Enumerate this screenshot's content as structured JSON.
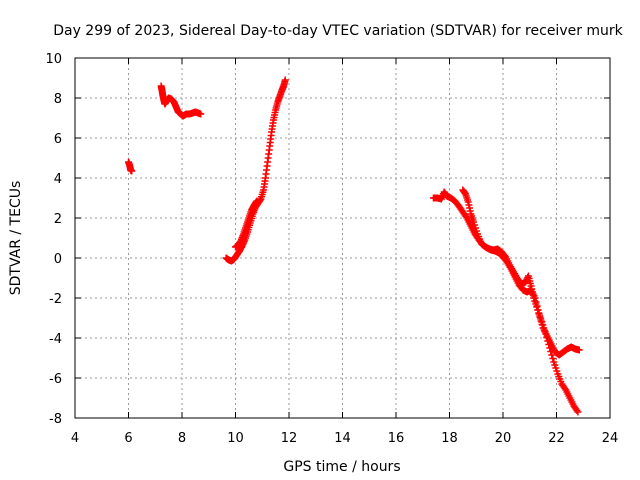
{
  "chart_data": {
    "type": "scatter",
    "title": "Day 299 of 2023, Sidereal Day-to-day VTEC variation (SDTVAR) for receiver murk",
    "xlabel": "GPS time / hours",
    "ylabel": "SDTVAR / TECUs",
    "xlim": [
      4,
      24
    ],
    "ylim": [
      -8,
      10
    ],
    "xticks": [
      4,
      6,
      8,
      10,
      12,
      14,
      16,
      18,
      20,
      22,
      24
    ],
    "yticks": [
      -8,
      -6,
      -4,
      -2,
      0,
      2,
      4,
      6,
      8,
      10
    ],
    "grid": true,
    "marker": "+",
    "color": "#ff0000",
    "series": [
      {
        "name": "SDTVAR",
        "segments": [
          [
            [
              6.0,
              4.8
            ],
            [
              6.05,
              4.6
            ],
            [
              6.08,
              4.4
            ],
            [
              6.12,
              4.35
            ]
          ],
          [
            [
              7.22,
              8.6
            ],
            [
              7.25,
              8.4
            ],
            [
              7.28,
              8.15
            ],
            [
              7.32,
              7.9
            ],
            [
              7.36,
              7.7
            ],
            [
              7.42,
              7.85
            ],
            [
              7.5,
              8.0
            ],
            [
              7.6,
              7.95
            ],
            [
              7.7,
              7.8
            ],
            [
              7.78,
              7.55
            ],
            [
              7.86,
              7.3
            ],
            [
              7.95,
              7.2
            ],
            [
              8.05,
              7.1
            ],
            [
              8.15,
              7.2
            ],
            [
              8.28,
              7.2
            ],
            [
              8.4,
              7.25
            ],
            [
              8.5,
              7.3
            ],
            [
              8.6,
              7.25
            ],
            [
              8.7,
              7.2
            ]
          ],
          [
            [
              9.65,
              0.0
            ],
            [
              9.75,
              -0.1
            ],
            [
              9.85,
              -0.15
            ],
            [
              9.95,
              -0.05
            ],
            [
              10.05,
              0.15
            ],
            [
              10.15,
              0.35
            ],
            [
              10.25,
              0.6
            ],
            [
              10.35,
              0.9
            ],
            [
              10.45,
              1.3
            ],
            [
              10.55,
              1.75
            ],
            [
              10.65,
              2.2
            ],
            [
              10.75,
              2.55
            ],
            [
              10.85,
              2.75
            ],
            [
              10.95,
              2.95
            ],
            [
              11.05,
              3.4
            ],
            [
              11.12,
              4.0
            ],
            [
              11.2,
              4.8
            ],
            [
              11.28,
              5.6
            ],
            [
              11.35,
              6.3
            ],
            [
              11.42,
              6.9
            ],
            [
              11.5,
              7.4
            ],
            [
              11.58,
              7.8
            ],
            [
              11.66,
              8.1
            ],
            [
              11.74,
              8.4
            ],
            [
              11.8,
              8.6
            ],
            [
              11.86,
              8.9
            ]
          ],
          [
            [
              10.0,
              0.55
            ],
            [
              10.1,
              0.65
            ],
            [
              10.2,
              0.85
            ],
            [
              10.3,
              1.2
            ],
            [
              10.4,
              1.6
            ],
            [
              10.5,
              2.0
            ],
            [
              10.6,
              2.4
            ],
            [
              10.7,
              2.65
            ],
            [
              10.8,
              2.85
            ]
          ],
          [
            [
              17.4,
              3.0
            ],
            [
              17.55,
              3.0
            ],
            [
              17.7,
              2.95
            ],
            [
              17.8,
              3.3
            ],
            [
              17.9,
              3.1
            ],
            [
              18.05,
              3.0
            ],
            [
              18.2,
              2.85
            ],
            [
              18.35,
              2.6
            ],
            [
              18.5,
              2.3
            ],
            [
              18.65,
              2.0
            ],
            [
              18.8,
              1.6
            ],
            [
              18.95,
              1.2
            ],
            [
              19.1,
              0.9
            ],
            [
              19.25,
              0.65
            ],
            [
              19.4,
              0.5
            ],
            [
              19.55,
              0.4
            ],
            [
              19.7,
              0.35
            ],
            [
              19.85,
              0.25
            ],
            [
              20.0,
              0.05
            ],
            [
              20.15,
              -0.2
            ],
            [
              20.3,
              -0.55
            ],
            [
              20.45,
              -0.95
            ],
            [
              20.6,
              -1.35
            ],
            [
              20.75,
              -1.6
            ],
            [
              20.9,
              -1.7
            ],
            [
              21.05,
              -1.6
            ],
            [
              21.2,
              -2.0
            ],
            [
              21.35,
              -2.8
            ],
            [
              21.5,
              -3.5
            ],
            [
              21.65,
              -3.9
            ],
            [
              21.8,
              -4.3
            ],
            [
              21.95,
              -4.7
            ],
            [
              22.1,
              -4.85
            ],
            [
              22.25,
              -4.7
            ],
            [
              22.4,
              -4.55
            ],
            [
              22.55,
              -4.45
            ],
            [
              22.7,
              -4.55
            ],
            [
              22.85,
              -4.6
            ]
          ],
          [
            [
              18.5,
              3.4
            ],
            [
              18.6,
              3.2
            ],
            [
              18.7,
              2.8
            ],
            [
              18.8,
              2.2
            ],
            [
              18.9,
              1.8
            ],
            [
              19.05,
              1.2
            ],
            [
              19.2,
              0.7
            ],
            [
              19.35,
              0.55
            ],
            [
              19.5,
              0.45
            ],
            [
              19.65,
              0.4
            ],
            [
              19.8,
              0.45
            ],
            [
              19.95,
              0.3
            ],
            [
              20.1,
              0.05
            ],
            [
              20.25,
              -0.35
            ],
            [
              20.4,
              -0.7
            ],
            [
              20.55,
              -1.05
            ],
            [
              20.7,
              -1.3
            ],
            [
              20.85,
              -1.2
            ],
            [
              20.95,
              -0.9
            ],
            [
              21.05,
              -1.4
            ],
            [
              21.15,
              -2.0
            ],
            [
              21.3,
              -2.6
            ],
            [
              21.45,
              -3.2
            ],
            [
              21.6,
              -3.8
            ],
            [
              21.75,
              -4.5
            ],
            [
              21.9,
              -5.2
            ],
            [
              22.05,
              -5.8
            ],
            [
              22.2,
              -6.3
            ],
            [
              22.35,
              -6.6
            ],
            [
              22.5,
              -7.0
            ],
            [
              22.65,
              -7.4
            ],
            [
              22.8,
              -7.7
            ]
          ]
        ]
      }
    ]
  }
}
